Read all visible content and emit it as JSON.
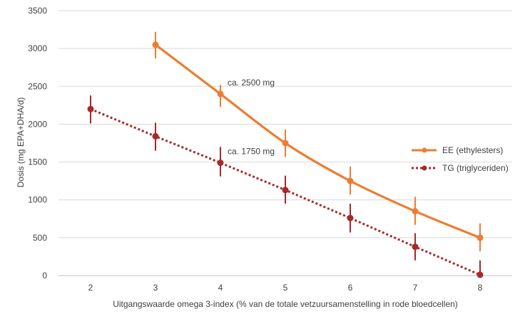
{
  "chart_data": {
    "type": "line",
    "title": "",
    "xlabel": "Uitgangswaarde omega 3-index (% van de totale vetzuursamenstelling in rode bloedcellen)",
    "ylabel": "Dosis (mg EPA+DHA/d)",
    "x_categories": [
      "2",
      "3",
      "4",
      "5",
      "6",
      "7",
      "8"
    ],
    "y_ticks": [
      "0",
      "500",
      "1000",
      "1500",
      "2000",
      "2500",
      "3000",
      "3500"
    ],
    "ylim": [
      0,
      3500
    ],
    "grid": "horizontal",
    "legend_position": "right",
    "series": [
      {
        "name": "EE (ethylesters)",
        "color": "#ed7d31",
        "line_style": "solid",
        "x": [
          3,
          4,
          5,
          6,
          7,
          8
        ],
        "y": [
          3050,
          2400,
          1750,
          1250,
          850,
          500
        ],
        "err_low": [
          2870,
          2230,
          1570,
          1070,
          670,
          320
        ],
        "err_high": [
          3220,
          2520,
          1930,
          1440,
          1040,
          690
        ]
      },
      {
        "name": "TG (triglyceriden)",
        "color": "#a52a2a",
        "line_style": "dotted",
        "x": [
          2,
          3,
          4,
          5,
          6,
          7,
          8
        ],
        "y": [
          2200,
          1840,
          1490,
          1130,
          760,
          380,
          10
        ],
        "err_low": [
          2010,
          1650,
          1310,
          950,
          570,
          200,
          0
        ],
        "err_high": [
          2380,
          2020,
          1700,
          1320,
          950,
          560,
          200
        ]
      }
    ],
    "annotations": [
      {
        "text": "ca. 2500 mg",
        "x": 4,
        "y": 2400
      },
      {
        "text": "ca. 1750 mg",
        "x": 4,
        "y": 1490
      }
    ]
  }
}
